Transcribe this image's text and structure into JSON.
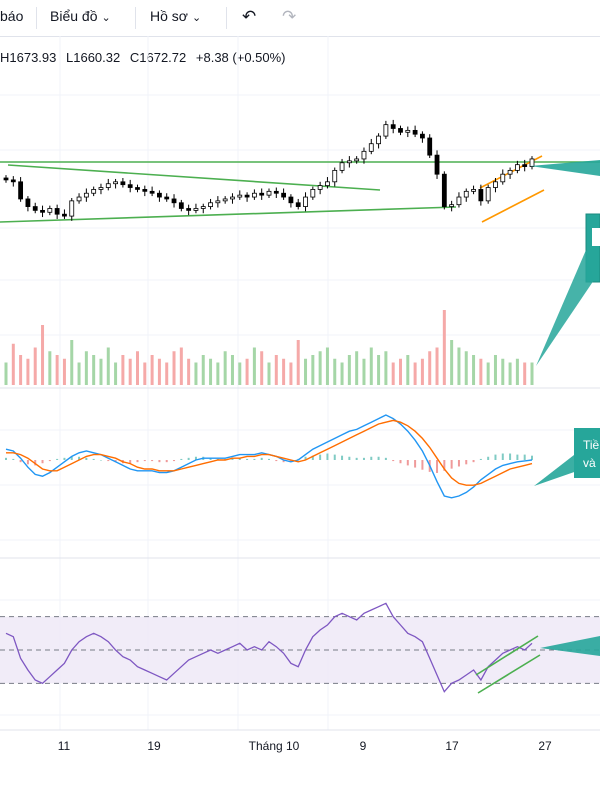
{
  "toolbar": {
    "report_partial": "báo",
    "chart_label": "Biểu đồ",
    "profile_label": "Hồ sơ",
    "undo_icon": "undo-icon",
    "redo_icon": "redo-icon"
  },
  "ohlc": {
    "high": "H1673.93",
    "low": "L1660.32",
    "close": "C1672.72",
    "change": "+8.38 (+0.50%)"
  },
  "colors": {
    "up": "#26a69a",
    "down": "#ef5350",
    "candle": "#000000",
    "trendline": "#4caf50",
    "channel": "#ff9800",
    "macd": "#2196f3",
    "signal": "#ff6d00",
    "rsi": "#7e57c2",
    "callout": "#26a69a"
  },
  "callouts": {
    "macd_line1": "Tiề",
    "macd_line2": "và"
  },
  "chart_data": {
    "type": "candlestick",
    "x_tick_labels": [
      "11",
      "19",
      "Tháng 10",
      "9",
      "17",
      "27"
    ],
    "last": {
      "high": 1673.93,
      "low": 1660.32,
      "close": 1672.72,
      "change": 8.38,
      "change_pct": 0.5
    },
    "close_path": [
      1650,
      1648,
      1630,
      1622,
      1618,
      1616,
      1620,
      1614,
      1612,
      1628,
      1632,
      1636,
      1640,
      1642,
      1646,
      1648,
      1645,
      1642,
      1640,
      1638,
      1636,
      1632,
      1630,
      1626,
      1620,
      1618,
      1620,
      1622,
      1626,
      1628,
      1630,
      1632,
      1634,
      1632,
      1636,
      1634,
      1638,
      1636,
      1632,
      1626,
      1622,
      1632,
      1640,
      1644,
      1648,
      1660,
      1668,
      1670,
      1672,
      1680,
      1688,
      1696,
      1708,
      1704,
      1700,
      1702,
      1698,
      1694,
      1676,
      1656,
      1622,
      1624,
      1632,
      1638,
      1640,
      1628,
      1642,
      1648,
      1656,
      1660,
      1666,
      1664,
      1672
    ],
    "volume_relative": [
      0.3,
      0.55,
      0.4,
      0.35,
      0.5,
      0.8,
      0.45,
      0.4,
      0.35,
      0.6,
      0.3,
      0.45,
      0.4,
      0.35,
      0.5,
      0.3,
      0.4,
      0.35,
      0.45,
      0.3,
      0.4,
      0.35,
      0.3,
      0.45,
      0.5,
      0.35,
      0.3,
      0.4,
      0.35,
      0.3,
      0.45,
      0.4,
      0.3,
      0.35,
      0.5,
      0.45,
      0.3,
      0.4,
      0.35,
      0.3,
      0.6,
      0.35,
      0.4,
      0.45,
      0.5,
      0.35,
      0.3,
      0.4,
      0.45,
      0.35,
      0.5,
      0.4,
      0.45,
      0.3,
      0.35,
      0.4,
      0.3,
      0.35,
      0.45,
      0.5,
      1.0,
      0.6,
      0.5,
      0.45,
      0.4,
      0.35,
      0.3,
      0.4,
      0.35,
      0.3,
      0.35,
      0.3,
      0.3
    ],
    "macd_hist": [
      0.2,
      0.1,
      -0.2,
      -0.4,
      -0.5,
      -0.3,
      -0.1,
      0.1,
      0.2,
      0.3,
      0.3,
      0.2,
      0.1,
      0.0,
      -0.1,
      -0.2,
      -0.3,
      -0.3,
      -0.2,
      -0.1,
      -0.1,
      -0.2,
      -0.2,
      -0.1,
      0.1,
      0.2,
      0.3,
      0.3,
      0.2,
      0.1,
      0.1,
      0.2,
      0.2,
      0.1,
      0.1,
      0.2,
      0.1,
      -0.1,
      -0.2,
      -0.1,
      0.1,
      0.3,
      0.4,
      0.5,
      0.6,
      0.5,
      0.4,
      0.3,
      0.2,
      0.2,
      0.3,
      0.3,
      0.2,
      -0.1,
      -0.3,
      -0.5,
      -0.7,
      -0.9,
      -1.1,
      -1.2,
      -1.0,
      -0.8,
      -0.6,
      -0.4,
      -0.2,
      0.1,
      0.3,
      0.5,
      0.6,
      0.6,
      0.5,
      0.5,
      0.4
    ],
    "macd_line": [
      0.6,
      0.5,
      0.1,
      -0.4,
      -0.8,
      -0.9,
      -0.7,
      -0.4,
      -0.1,
      0.2,
      0.4,
      0.5,
      0.4,
      0.3,
      0.1,
      -0.1,
      -0.3,
      -0.5,
      -0.6,
      -0.6,
      -0.6,
      -0.7,
      -0.7,
      -0.6,
      -0.4,
      -0.2,
      0.0,
      0.1,
      0.1,
      0.1,
      0.1,
      0.2,
      0.3,
      0.3,
      0.3,
      0.4,
      0.3,
      0.2,
      0.0,
      -0.1,
      0.0,
      0.3,
      0.6,
      0.8,
      1.0,
      1.2,
      1.4,
      1.6,
      1.7,
      1.9,
      2.1,
      2.3,
      2.5,
      2.3,
      2.0,
      1.6,
      1.1,
      0.5,
      -0.3,
      -1.2,
      -2.0,
      -2.1,
      -2.0,
      -1.8,
      -1.5,
      -1.1,
      -0.8,
      -0.5,
      -0.3,
      -0.2,
      -0.1,
      -0.05,
      0.0
    ],
    "signal_line": [
      0.4,
      0.4,
      0.3,
      0.1,
      -0.2,
      -0.5,
      -0.6,
      -0.6,
      -0.4,
      -0.2,
      0.0,
      0.2,
      0.3,
      0.3,
      0.2,
      0.1,
      -0.1,
      -0.2,
      -0.4,
      -0.5,
      -0.5,
      -0.6,
      -0.6,
      -0.6,
      -0.5,
      -0.4,
      -0.3,
      -0.2,
      -0.1,
      0.0,
      0.0,
      0.1,
      0.1,
      0.2,
      0.2,
      0.3,
      0.3,
      0.2,
      0.1,
      0.0,
      -0.1,
      0.0,
      0.2,
      0.4,
      0.6,
      0.8,
      1.0,
      1.2,
      1.4,
      1.6,
      1.8,
      2.0,
      2.1,
      2.2,
      2.1,
      1.9,
      1.6,
      1.2,
      0.7,
      0.1,
      -0.5,
      -1.0,
      -1.3,
      -1.4,
      -1.4,
      -1.3,
      -1.1,
      -0.9,
      -0.7,
      -0.5,
      -0.4,
      -0.3,
      -0.2
    ],
    "rsi": [
      60,
      58,
      45,
      38,
      32,
      30,
      34,
      38,
      42,
      50,
      55,
      58,
      60,
      58,
      55,
      50,
      46,
      44,
      40,
      38,
      36,
      34,
      32,
      36,
      40,
      44,
      46,
      48,
      50,
      48,
      50,
      52,
      54,
      50,
      52,
      50,
      55,
      52,
      48,
      42,
      40,
      50,
      58,
      62,
      65,
      70,
      72,
      70,
      68,
      72,
      74,
      76,
      78,
      70,
      65,
      60,
      58,
      55,
      45,
      35,
      25,
      30,
      32,
      35,
      38,
      32,
      40,
      44,
      48,
      50,
      52,
      50,
      54
    ],
    "rsi_bands": [
      30,
      50,
      70
    ]
  }
}
